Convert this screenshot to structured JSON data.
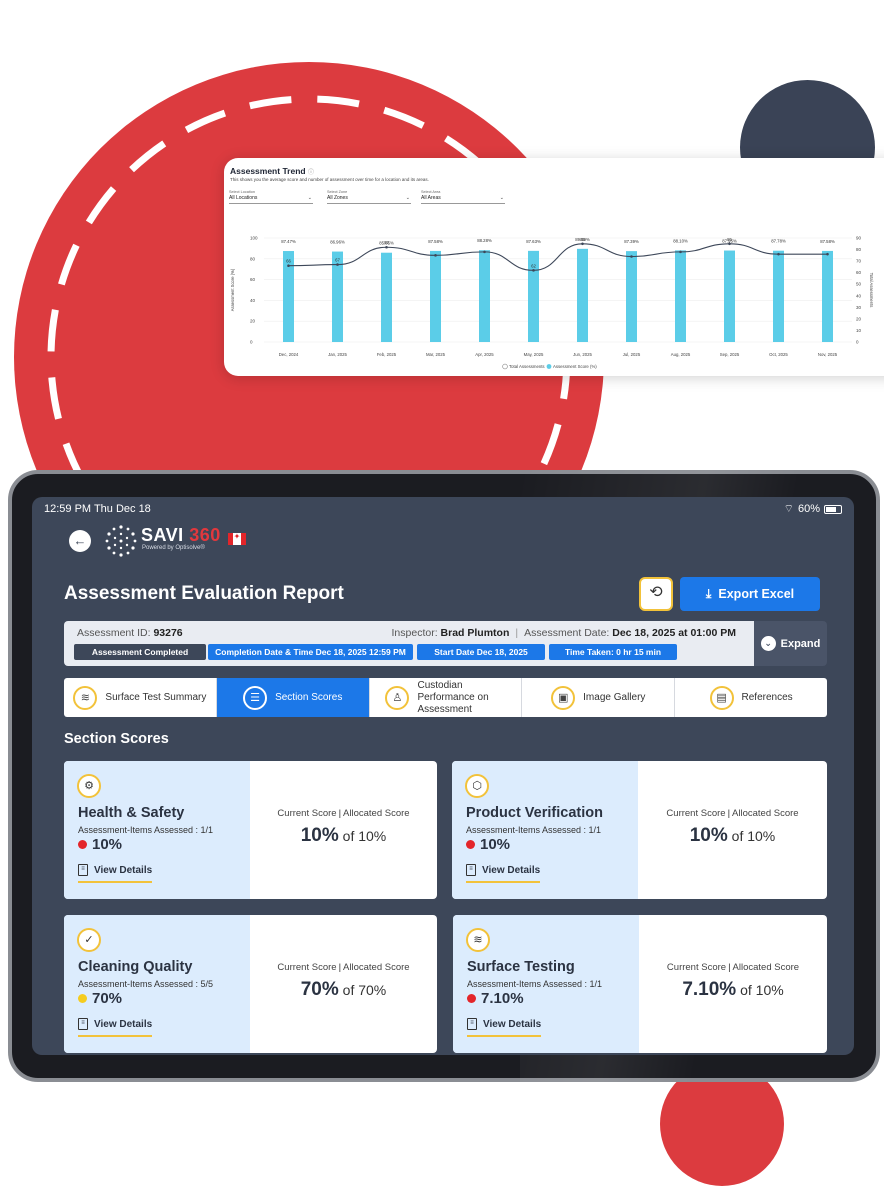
{
  "status": {
    "time": "12:59 PM  Thu Dec 18",
    "battery": "60%"
  },
  "brand": {
    "name": "SAVI",
    "number": "360",
    "tagline": "Powered by Optisolve®"
  },
  "page": {
    "title": "Assessment Evaluation Report",
    "export_label": "Export Excel"
  },
  "info": {
    "id_label": "Assessment ID:",
    "id_value": "93276",
    "inspector_label": "Inspector:",
    "inspector_value": "Brad Plumton",
    "date_label": "Assessment Date:",
    "date_value": "Dec 18, 2025  at  01:00 PM",
    "chips": [
      "Assessment Completed",
      "Completion Date & Time Dec 18, 2025  12:59 PM",
      "Start Date Dec 18, 2025",
      "Time Taken: 0  hr 15 min"
    ],
    "expand_label": "Expand"
  },
  "tabs": [
    "Surface Test Summary",
    "Section Scores",
    "Custodian Performance on Assessment",
    "Image Gallery",
    "References"
  ],
  "sections": {
    "heading": "Section Scores",
    "current_label": "Current Score",
    "allocated_label": "Allocated Score",
    "of_label": "of",
    "view_details": "View Details",
    "cards": [
      {
        "title": "Health & Safety",
        "items": "Assessment-Items Assessed : 1/1",
        "score": "10%",
        "current": "10%",
        "allocated": "10%"
      },
      {
        "title": "Product Verification",
        "items": "Assessment-Items Assessed : 1/1",
        "score": "10%",
        "current": "10%",
        "allocated": "10%"
      },
      {
        "title": "Cleaning Quality",
        "items": "Assessment-Items Assessed : 5/5",
        "score": "70%",
        "current": "70%",
        "allocated": "70%"
      },
      {
        "title": "Surface Testing",
        "items": "Assessment-Items Assessed : 1/1",
        "score": "7.10%",
        "current": "7.10%",
        "allocated": "10%"
      }
    ]
  },
  "trend": {
    "title": "Assessment Trend",
    "subtitle": "This shows you the average score and number of assessment over time for a location and its areas.",
    "filters": [
      {
        "label": "Select Location",
        "value": "All Locations"
      },
      {
        "label": "Select Zone",
        "value": "All Zones"
      },
      {
        "label": "Select Area",
        "value": "All Areas"
      }
    ]
  },
  "chart_data": {
    "type": "bar",
    "title": "Assessment Trend",
    "categories": [
      "Dec, 2024",
      "Jan, 2025",
      "Feb, 2025",
      "Mar, 2025",
      "Apr, 2025",
      "May, 2025",
      "Jun, 2025",
      "Jul, 2025",
      "Aug, 2025",
      "Sep, 2025",
      "Oct, 2025",
      "Nov, 2025"
    ],
    "series": [
      {
        "name": "Assessment Score (%)",
        "type": "bar",
        "axis": "left",
        "values": [
          87.47,
          86.96,
          85.85,
          87.58,
          88.28,
          87.63,
          89.59,
          87.39,
          88.1,
          87.95,
          87.78,
          87.58
        ],
        "labels": [
          "87.47%",
          "86.96%",
          "85.85%",
          "87.58%",
          "88.28%",
          "87.63%",
          "89.59%",
          "87.39%",
          "88.10%",
          "87.95%",
          "87.78%",
          "87.58%"
        ]
      },
      {
        "name": "Total Assessments",
        "type": "line",
        "axis": "right",
        "values": [
          66,
          67,
          82,
          75,
          78,
          62,
          85,
          74,
          78,
          85,
          76,
          76
        ],
        "labels": [
          "66",
          "67",
          "82",
          "",
          "",
          "62",
          "85",
          "",
          "",
          "85",
          "",
          ""
        ]
      }
    ],
    "ylabel": "Assessment Score (%)",
    "y2label": "Total Assessments",
    "ylim": [
      0,
      100
    ],
    "y2lim": [
      0,
      90
    ],
    "yticks": [
      0,
      20,
      40,
      60,
      80,
      100
    ],
    "y2ticks": [
      0,
      10,
      20,
      30,
      40,
      50,
      60,
      70,
      80,
      90
    ],
    "legend": [
      "Total Assessments",
      "Assessment Score (%)"
    ],
    "colors": {
      "bar": "#5bcde8",
      "line": "#3d4759"
    }
  }
}
